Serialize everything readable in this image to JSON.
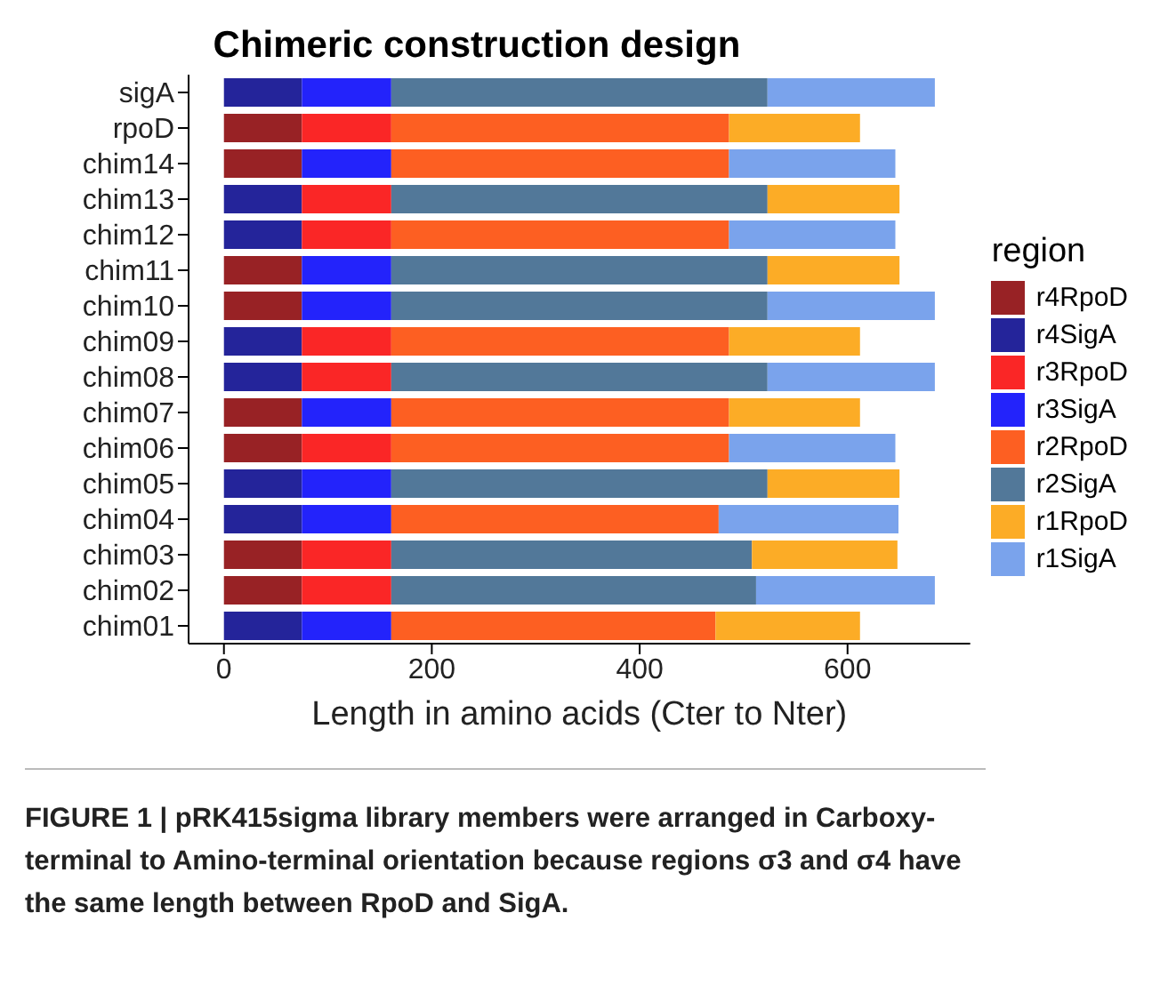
{
  "chart_data": {
    "type": "bar",
    "orientation": "horizontal",
    "stacked": true,
    "title": "Chimeric construction design",
    "xlabel": "Length in amino acids (Cter to Nter)",
    "legend_title": "region",
    "legend": "right",
    "grid": false,
    "categories": [
      "sigA",
      "rpoD",
      "chim14",
      "chim13",
      "chim12",
      "chim11",
      "chim10",
      "chim09",
      "chim08",
      "chim07",
      "chim06",
      "chim05",
      "chim04",
      "chim03",
      "chim02",
      "chim01"
    ],
    "series": [
      {
        "name": "r4RpoD",
        "color": "#982225",
        "values": [
          null,
          75,
          75,
          null,
          null,
          75,
          75,
          null,
          null,
          75,
          75,
          null,
          null,
          75,
          75,
          null
        ]
      },
      {
        "name": "r4SigA",
        "color": "#24249a",
        "values": [
          75,
          null,
          null,
          75,
          75,
          null,
          null,
          75,
          75,
          null,
          null,
          75,
          75,
          null,
          null,
          75
        ]
      },
      {
        "name": "r3RpoD",
        "color": "#fa2626",
        "values": [
          null,
          86,
          null,
          86,
          86,
          null,
          null,
          86,
          86,
          null,
          86,
          null,
          null,
          86,
          86,
          null
        ]
      },
      {
        "name": "r3SigA",
        "color": "#2323fb",
        "values": [
          86,
          null,
          86,
          null,
          null,
          86,
          86,
          null,
          null,
          86,
          null,
          86,
          86,
          null,
          null,
          86
        ]
      },
      {
        "name": "r2RpoD",
        "color": "#fd5f22",
        "values": [
          null,
          325,
          325,
          null,
          325,
          null,
          null,
          325,
          null,
          325,
          325,
          null,
          315,
          null,
          null,
          312
        ]
      },
      {
        "name": "r2SigA",
        "color": "#527899",
        "values": [
          362,
          null,
          null,
          362,
          null,
          362,
          362,
          null,
          362,
          null,
          null,
          362,
          null,
          347,
          351,
          null
        ]
      },
      {
        "name": "r1RpoD",
        "color": "#fcac26",
        "values": [
          null,
          126,
          null,
          127,
          null,
          127,
          null,
          126,
          null,
          126,
          null,
          127,
          null,
          140,
          null,
          139
        ]
      },
      {
        "name": "r1SigA",
        "color": "#7aa3ec",
        "values": [
          161,
          null,
          160,
          null,
          160,
          null,
          161,
          null,
          161,
          null,
          160,
          null,
          173,
          null,
          172,
          null
        ]
      }
    ],
    "xlim": [
      -34,
      718
    ],
    "xticks": [
      0,
      200,
      400,
      600
    ],
    "annotations": [
      "FIGURE 1 | pRK415sigma library members were arranged in Carboxy-terminal to Amino-terminal orientation because regions σ3 and σ4 have the same length between RpoD and SigA."
    ]
  }
}
